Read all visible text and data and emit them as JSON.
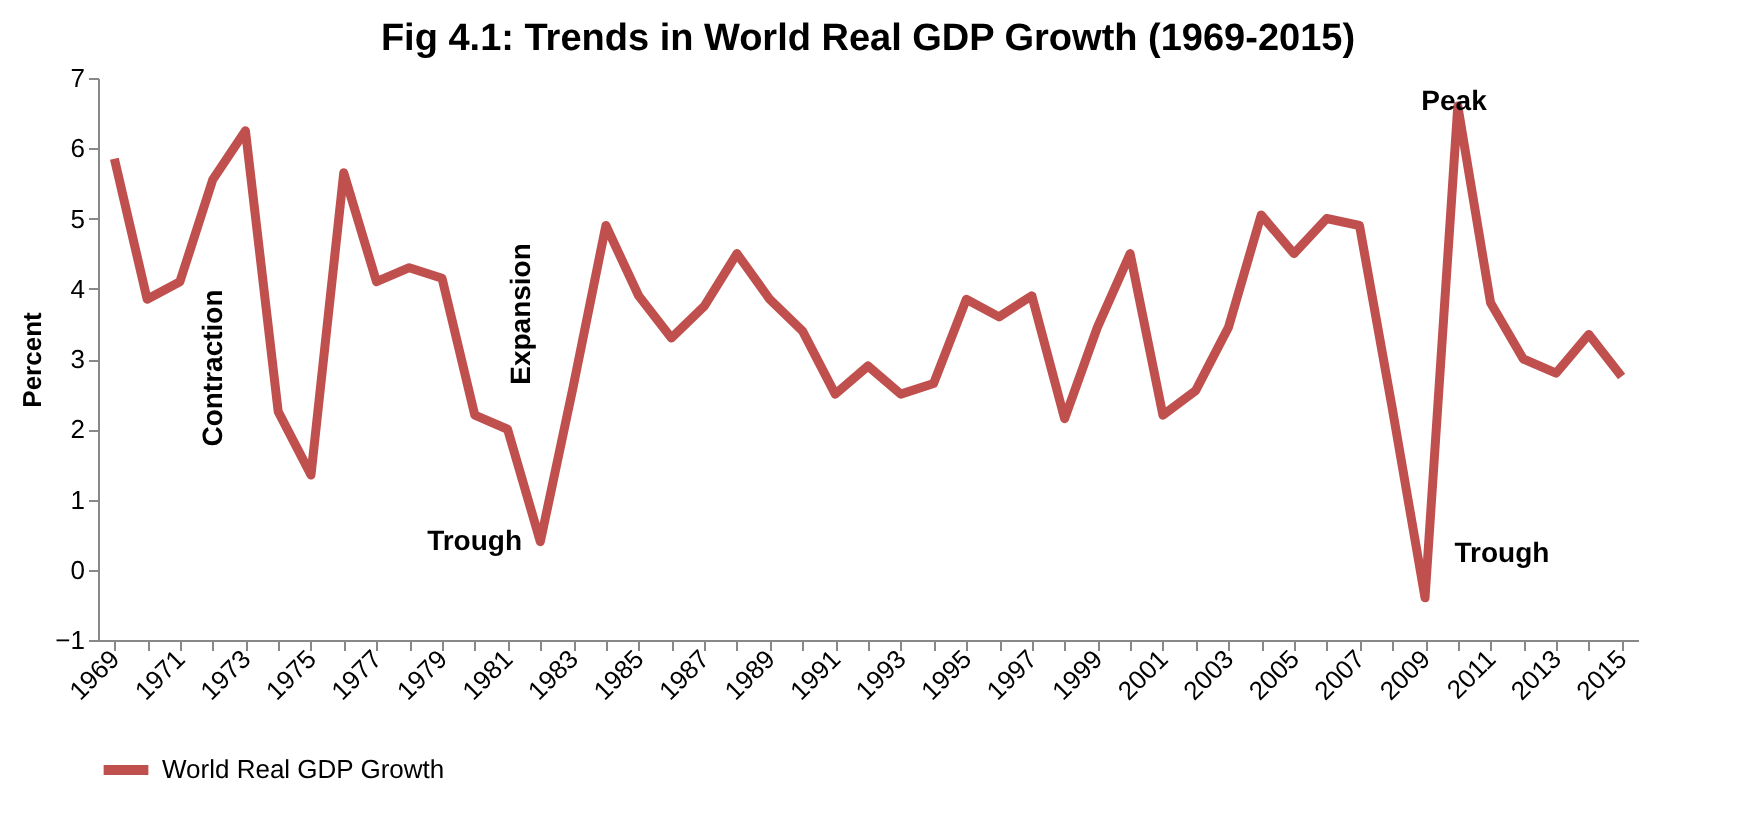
{
  "chart_data": {
    "type": "line",
    "title": "Fig 4.1: Trends in World Real GDP Growth (1969-2015)",
    "ylabel": "Percent",
    "categories": [
      "1969",
      null,
      "1971",
      null,
      "1973",
      null,
      "1975",
      null,
      "1977",
      null,
      "1979",
      null,
      "1981",
      null,
      "1983",
      null,
      "1985",
      null,
      "1987",
      null,
      "1989",
      null,
      "1991",
      null,
      "1993",
      null,
      "1995",
      null,
      "1997",
      null,
      "1999",
      null,
      "2001",
      null,
      "2003",
      null,
      "2005",
      null,
      "2007",
      null,
      "2009",
      null,
      "2011",
      null,
      "2013",
      null,
      "2015"
    ],
    "series": [
      {
        "name": "World Real GDP Growth",
        "color": "#c0504d",
        "values": [
          5.85,
          3.85,
          4.1,
          5.55,
          6.25,
          2.25,
          1.35,
          5.65,
          4.1,
          4.3,
          4.15,
          2.2,
          2.0,
          0.4,
          2.6,
          4.9,
          3.9,
          3.3,
          3.75,
          4.5,
          3.85,
          3.4,
          2.5,
          2.9,
          2.5,
          2.65,
          3.85,
          3.6,
          3.9,
          2.15,
          3.45,
          4.5,
          2.2,
          2.55,
          3.45,
          5.05,
          4.5,
          5.0,
          4.9,
          2.3,
          -0.4,
          6.6,
          3.8,
          3.0,
          2.8,
          3.35,
          2.75
        ]
      }
    ],
    "ylim": [
      -1,
      7
    ],
    "yticks": [
      -1,
      0,
      1,
      2,
      3,
      4,
      5,
      6,
      7
    ],
    "grid": false,
    "legend": "bottom",
    "marker": "none",
    "line_style": "solid",
    "annotations": [
      "Contraction",
      "Expansion",
      "Trough",
      "Peak",
      "Trough"
    ]
  }
}
